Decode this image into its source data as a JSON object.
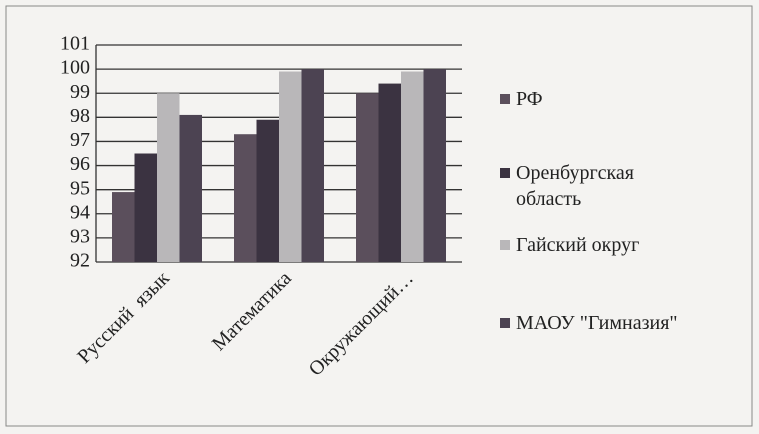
{
  "chart_data": {
    "type": "bar",
    "categories": [
      "Русский  язык",
      "Математика",
      "Окружающий…"
    ],
    "series": [
      {
        "name": "РФ",
        "color": "#5b4f5c",
        "values": [
          94.9,
          97.3,
          99.0
        ]
      },
      {
        "name": "Оренбургская область",
        "color": "#3b3341",
        "values": [
          96.5,
          97.9,
          99.4
        ]
      },
      {
        "name": "Гайский округ",
        "color": "#b9b7b9",
        "values": [
          99.0,
          99.9,
          99.9
        ]
      },
      {
        "name": "МАОУ \"Гимназия\"",
        "color": "#4c4352",
        "values": [
          98.1,
          100,
          100
        ]
      }
    ],
    "ylim": [
      92,
      101
    ],
    "yticks": [
      92,
      93,
      94,
      95,
      96,
      97,
      98,
      99,
      100,
      101
    ],
    "grid": true,
    "legend": "right"
  }
}
